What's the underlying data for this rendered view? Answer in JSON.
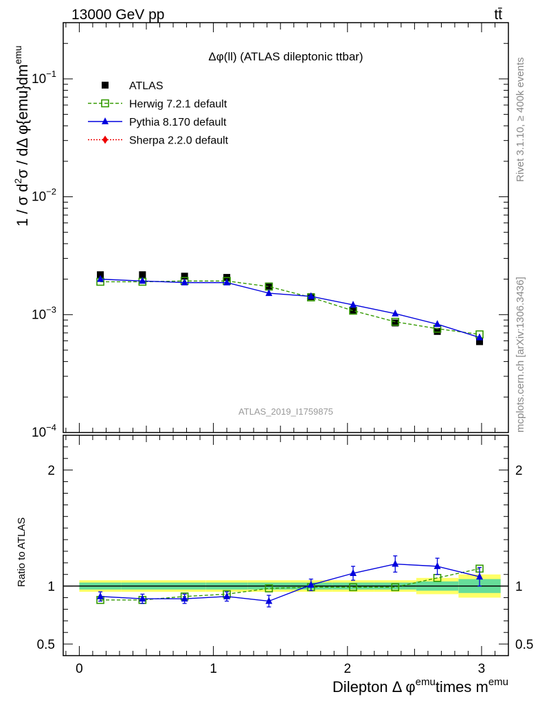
{
  "header": {
    "energy_label": "13000 GeV pp",
    "process_label": "tt̄"
  },
  "side_labels": {
    "rivet": "Rivet 3.1.10, ≥ 400k events",
    "mcplots": "mcplots.cern.ch [arXiv:1306.3436]"
  },
  "colors": {
    "atlas": "#000000",
    "herwig": "#339900",
    "pythia": "#0000dd",
    "sherpa": "#ee0000",
    "band_inner": "#66dd99",
    "band_outer": "#ffff66",
    "watermark": "#999999"
  },
  "chart_data": [
    {
      "type": "scatter",
      "panel": "main",
      "title": "Δφ(ll) (ATLAS dileptonic ttbar)",
      "watermark": "ATLAS_2019_I1759875",
      "ylabel_parts": {
        "a": "1 / σ  d",
        "a_sup": "2",
        "b": "σ / dΔ φ{emu}dm",
        "b_sup": "emu"
      },
      "yscale": "log",
      "ylim": [
        0.0001,
        0.3
      ],
      "yticks": [
        {
          "value": 0.1,
          "base": "10",
          "exp": "−1"
        },
        {
          "value": 0.01,
          "base": "10",
          "exp": "−2"
        },
        {
          "value": 0.001,
          "base": "10",
          "exp": "−3"
        },
        {
          "value": 0.0001,
          "base": "10",
          "exp": "−4"
        }
      ],
      "xlim": [
        -0.12,
        3.2
      ],
      "legend_position": "top-left",
      "x": [
        0.157,
        0.471,
        0.785,
        1.1,
        1.414,
        1.728,
        2.042,
        2.356,
        2.67,
        2.985
      ],
      "series": [
        {
          "name": "ATLAS",
          "key": "atlas",
          "marker": "square-filled",
          "values": [
            0.00218,
            0.00218,
            0.00212,
            0.00207,
            0.00175,
            0.00142,
            0.00109,
            0.00085,
            0.00072,
            0.00059
          ]
        },
        {
          "name": "Herwig 7.2.1 default",
          "key": "herwig",
          "marker": "square-open",
          "line": "dashed",
          "values": [
            0.0019,
            0.0019,
            0.00193,
            0.00193,
            0.00173,
            0.0014,
            0.00108,
            0.00087,
            0.00076,
            0.00068
          ]
        },
        {
          "name": "Pythia 8.170 default",
          "key": "pythia",
          "marker": "triangle-filled",
          "line": "solid",
          "values": [
            0.002,
            0.00193,
            0.00187,
            0.00187,
            0.00152,
            0.00143,
            0.00121,
            0.00102,
            0.00083,
            0.00064
          ]
        },
        {
          "name": "Sherpa 2.2.0 default",
          "key": "sherpa",
          "marker": "diamond-filled",
          "line": "dotted",
          "values": []
        }
      ]
    },
    {
      "type": "line",
      "panel": "ratio",
      "ylabel": "Ratio to ATLAS",
      "ylim": [
        0.4,
        2.3
      ],
      "yticks": [
        0.5,
        1,
        2
      ],
      "xlim": [
        -0.12,
        3.2
      ],
      "xticks": [
        0,
        1,
        2,
        3
      ],
      "xlabel_parts": {
        "a": "Dilepton Δ φ",
        "a_sup": "emu",
        "b": "times m",
        "b_sup": "emu"
      },
      "x": [
        0.157,
        0.471,
        0.785,
        1.1,
        1.414,
        1.728,
        2.042,
        2.356,
        2.67,
        2.985
      ],
      "band_inner": [
        0.03,
        0.03,
        0.03,
        0.03,
        0.03,
        0.03,
        0.03,
        0.03,
        0.04,
        0.06
      ],
      "band_outer": [
        0.05,
        0.05,
        0.05,
        0.05,
        0.05,
        0.05,
        0.05,
        0.05,
        0.07,
        0.1
      ],
      "series": [
        {
          "name": "Herwig 7.2.1 default",
          "key": "herwig",
          "marker": "square-open",
          "line": "dashed",
          "values": [
            0.88,
            0.88,
            0.91,
            0.93,
            0.98,
            0.99,
            0.99,
            0.99,
            1.07,
            1.15
          ],
          "errors": [
            0,
            0,
            0,
            0,
            0,
            0,
            0,
            0,
            0,
            0
          ]
        },
        {
          "name": "Pythia 8.170 default",
          "key": "pythia",
          "marker": "triangle-filled",
          "line": "solid",
          "values": [
            0.91,
            0.89,
            0.89,
            0.91,
            0.87,
            1.01,
            1.11,
            1.19,
            1.17,
            1.08
          ],
          "errors": [
            0.04,
            0.04,
            0.04,
            0.04,
            0.05,
            0.05,
            0.06,
            0.07,
            0.07,
            0.08
          ]
        }
      ]
    }
  ]
}
